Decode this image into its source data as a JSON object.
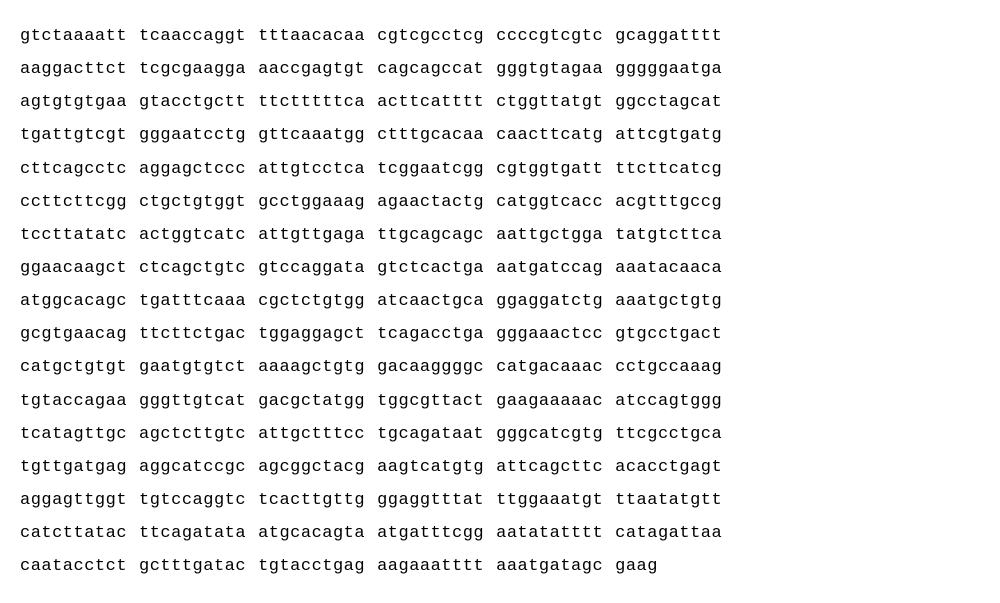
{
  "sequence": {
    "type": "dna-sequence",
    "font_family": "Courier New",
    "font_size": 17,
    "text_color": "#000000",
    "background_color": "#ffffff",
    "block_size": 10,
    "blocks_per_row": 6,
    "letter_spacing": 0.5,
    "block_gap": 12,
    "line_height": 1.95,
    "rows": [
      [
        "gtctaaaatt",
        "tcaaccaggt",
        "tttaacacaa",
        "cgtcgcctcg",
        "ccccgtcgtc",
        "gcaggatttt"
      ],
      [
        "aaggacttct",
        "tcgcgaagga",
        "aaccgagtgt",
        "cagcagccat",
        "gggtgtagaa",
        "gggggaatga"
      ],
      [
        "agtgtgtgaa",
        "gtacctgctt",
        "ttctttttca",
        "acttcatttt",
        "ctggttatgt",
        "ggcctagcat"
      ],
      [
        "tgattgtcgt",
        "gggaatcctg",
        "gttcaaatgg",
        "ctttgcacaa",
        "caacttcatg",
        "attcgtgatg"
      ],
      [
        "cttcagcctc",
        "aggagctccc",
        "attgtcctca",
        "tcggaatcgg",
        "cgtggtgatt",
        "ttcttcatcg"
      ],
      [
        "ccttcttcgg",
        "ctgctgtggt",
        "gcctggaaag",
        "agaactactg",
        "catggtcacc",
        "acgtttgccg"
      ],
      [
        "tccttatatc",
        "actggtcatc",
        "attgttgaga",
        "ttgcagcagc",
        "aattgctgga",
        "tatgtcttca"
      ],
      [
        "ggaacaagct",
        "ctcagctgtc",
        "gtccaggata",
        "gtctcactga",
        "aatgatccag",
        "aaatacaaca"
      ],
      [
        "atggcacagc",
        "tgatttcaaa",
        "cgctctgtgg",
        "atcaactgca",
        "ggaggatctg",
        "aaatgctgtg"
      ],
      [
        "gcgtgaacag",
        "ttcttctgac",
        "tggaggagct",
        "tcagacctga",
        "gggaaactcc",
        "gtgcctgact"
      ],
      [
        "catgctgtgt",
        "gaatgtgtct",
        "aaaagctgtg",
        "gacaaggggc",
        "catgacaaac",
        "cctgccaaag"
      ],
      [
        "tgtaccagaa",
        "gggttgtcat",
        "gacgctatgg",
        "tggcgttact",
        "gaagaaaaac",
        "atccagtggg"
      ],
      [
        "tcatagttgc",
        "agctcttgtc",
        "attgctttcc",
        "tgcagataat",
        "gggcatcgtg",
        "ttcgcctgca"
      ],
      [
        "tgttgatgag",
        "aggcatccgc",
        "agcggctacg",
        "aagtcatgtg",
        "attcagcttc",
        "acacctgagt"
      ],
      [
        "aggagttggt",
        "tgtccaggtc",
        "tcacttgttg",
        "ggaggtttat",
        "ttggaaatgt",
        "ttaatatgtt"
      ],
      [
        "catcttatac",
        "ttcagatata",
        "atgcacagta",
        "atgatttcgg",
        "aatatatttt",
        "catagattaa"
      ],
      [
        "caatacctct",
        "gctttgatac",
        "tgtacctgag",
        "aagaaatttt",
        "aaatgatagc",
        "gaag"
      ]
    ]
  }
}
